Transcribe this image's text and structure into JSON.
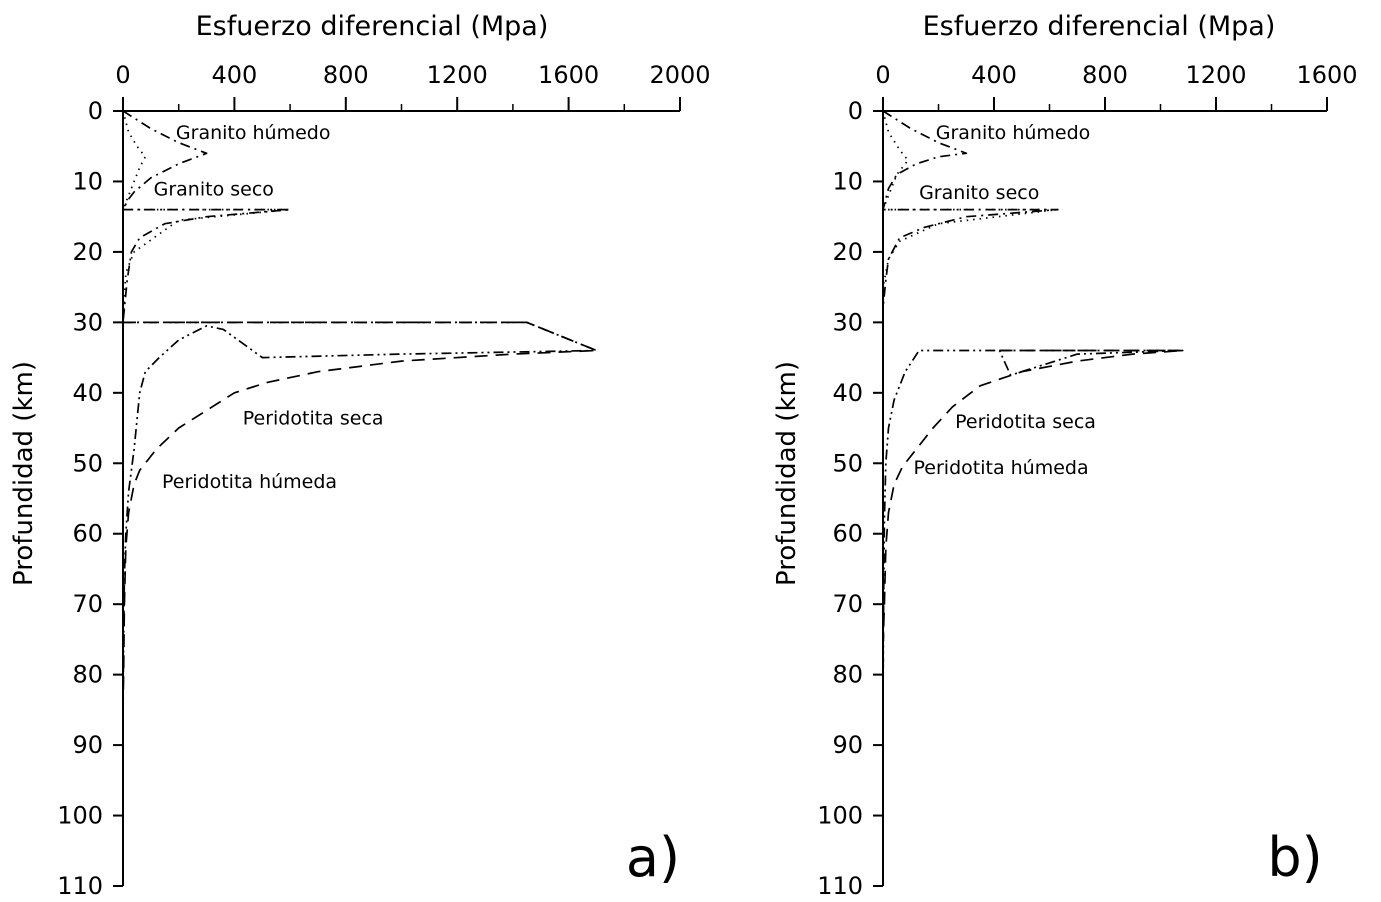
{
  "colors": {
    "ink": "#000000",
    "background": "#ffffff"
  },
  "chart_data": [
    {
      "type": "line",
      "panel_label": "a)",
      "title": "Esfuerzo diferencial (Mpa)",
      "xlabel": "Esfuerzo diferencial (Mpa)",
      "ylabel": "Profundidad (km)",
      "x_axis_position": "top",
      "y_inverted": true,
      "xlim": [
        0,
        2000
      ],
      "ylim": [
        0,
        110
      ],
      "xticks": [
        0,
        400,
        800,
        1200,
        1600,
        2000
      ],
      "xtick_labels": [
        "0",
        "400",
        "800",
        "1200",
        "1600",
        "2000"
      ],
      "yticks": [
        0,
        10,
        20,
        30,
        40,
        50,
        60,
        70,
        80,
        90,
        100,
        110
      ],
      "ytick_labels": [
        "0",
        "10",
        "20",
        "30",
        "40",
        "50",
        "60",
        "70",
        "80",
        "90",
        "100",
        "110"
      ],
      "grid": false,
      "series": [
        {
          "style": "dash-dot",
          "points": [
            [
              0,
              0
            ],
            [
              100,
              2.5
            ],
            [
              200,
              4.5
            ],
            [
              300,
              6
            ],
            [
              200,
              7.5
            ],
            [
              100,
              9.5
            ],
            [
              40,
              11.5
            ],
            [
              20,
              12.5
            ],
            [
              0,
              14
            ],
            [
              600,
              14
            ],
            [
              300,
              15
            ],
            [
              150,
              16
            ],
            [
              60,
              18
            ],
            [
              30,
              20
            ],
            [
              15,
              24
            ],
            [
              5,
              28
            ],
            [
              0,
              30
            ]
          ]
        },
        {
          "style": "dotted",
          "points": [
            [
              0,
              0
            ],
            [
              20,
              3
            ],
            [
              50,
              5
            ],
            [
              80,
              6.5
            ],
            [
              60,
              8
            ],
            [
              40,
              10
            ],
            [
              20,
              12
            ],
            [
              0,
              14
            ],
            [
              600,
              14
            ],
            [
              200,
              15.5
            ],
            [
              40,
              20
            ],
            [
              10,
              23
            ],
            [
              0,
              30
            ]
          ]
        },
        {
          "style": "dashed",
          "points": [
            [
              0,
              30
            ],
            [
              1450,
              30
            ],
            [
              1700,
              34
            ],
            [
              1400,
              34.5
            ],
            [
              1000,
              35.5
            ],
            [
              700,
              37
            ],
            [
              520,
              38.5
            ],
            [
              400,
              40
            ],
            [
              300,
              42.5
            ],
            [
              200,
              45
            ],
            [
              120,
              48
            ],
            [
              60,
              51
            ],
            [
              40,
              53
            ],
            [
              20,
              57
            ],
            [
              10,
              62
            ],
            [
              5,
              70
            ],
            [
              2,
              80
            ],
            [
              0,
              85
            ]
          ]
        },
        {
          "style": "dash-dot-dot",
          "points": [
            [
              0,
              30
            ],
            [
              1450,
              30
            ],
            [
              1700,
              34
            ],
            [
              1000,
              34.5
            ],
            [
              500,
              35
            ],
            [
              360,
              31
            ],
            [
              300,
              30.5
            ],
            [
              200,
              32.5
            ],
            [
              130,
              35
            ],
            [
              80,
              37
            ],
            [
              60,
              40
            ],
            [
              50,
              44
            ],
            [
              40,
              48
            ],
            [
              30,
              51
            ],
            [
              20,
              54
            ],
            [
              10,
              60
            ],
            [
              5,
              66
            ],
            [
              2,
              75
            ],
            [
              0,
              85
            ]
          ]
        }
      ],
      "annotations": [
        {
          "text": "Granito húmedo",
          "x": 190,
          "y": 3
        },
        {
          "text": "Granito seco",
          "x": 110,
          "y": 11
        },
        {
          "text": "Peridotita seca",
          "x": 430,
          "y": 43.5
        },
        {
          "text": "Peridotita húmeda",
          "x": 140,
          "y": 52.5
        }
      ]
    },
    {
      "type": "line",
      "panel_label": "b)",
      "title": "Esfuerzo diferencial (Mpa)",
      "xlabel": "Esfuerzo diferencial (Mpa)",
      "ylabel": "Profundidad (km)",
      "x_axis_position": "top",
      "y_inverted": true,
      "xlim": [
        0,
        1600
      ],
      "ylim": [
        0,
        110
      ],
      "xticks": [
        0,
        400,
        800,
        1200,
        1600
      ],
      "xtick_labels": [
        "0",
        "400",
        "800",
        "1200",
        "1600"
      ],
      "yticks": [
        0,
        10,
        20,
        30,
        40,
        50,
        60,
        70,
        80,
        90,
        100,
        110
      ],
      "ytick_labels": [
        "0",
        "10",
        "20",
        "30",
        "40",
        "50",
        "60",
        "70",
        "80",
        "90",
        "100",
        "110"
      ],
      "grid": false,
      "series": [
        {
          "style": "dash-dot",
          "points": [
            [
              0,
              0
            ],
            [
              100,
              2.5
            ],
            [
              200,
              4.5
            ],
            [
              300,
              6
            ],
            [
              200,
              6.5
            ],
            [
              120,
              7.5
            ],
            [
              50,
              9
            ],
            [
              20,
              11
            ],
            [
              0,
              14
            ],
            [
              630,
              14
            ],
            [
              300,
              15
            ],
            [
              150,
              16.5
            ],
            [
              60,
              18
            ],
            [
              20,
              21
            ],
            [
              10,
              24
            ],
            [
              0,
              28
            ]
          ]
        },
        {
          "style": "dotted",
          "points": [
            [
              0,
              0
            ],
            [
              20,
              3
            ],
            [
              60,
              5.5
            ],
            [
              90,
              7
            ],
            [
              50,
              9
            ],
            [
              20,
              12
            ],
            [
              0,
              14
            ],
            [
              630,
              14
            ],
            [
              200,
              16
            ],
            [
              60,
              18.5
            ],
            [
              20,
              21
            ],
            [
              0,
              25
            ]
          ]
        },
        {
          "style": "dashed",
          "points": [
            [
              420,
              34
            ],
            [
              1080,
              34
            ],
            [
              900,
              34.5
            ],
            [
              700,
              35.5
            ],
            [
              500,
              37
            ],
            [
              350,
              39
            ],
            [
              250,
              42
            ],
            [
              180,
              45
            ],
            [
              120,
              48
            ],
            [
              70,
              50.5
            ],
            [
              40,
              53
            ],
            [
              20,
              57
            ],
            [
              10,
              62
            ],
            [
              5,
              70
            ],
            [
              0,
              76
            ]
          ]
        },
        {
          "style": "dash-dot-dot",
          "points": [
            [
              420,
              34
            ],
            [
              1080,
              34
            ],
            [
              700,
              34.5
            ],
            [
              460,
              37.5
            ],
            [
              420,
              34
            ],
            [
              130,
              34
            ],
            [
              80,
              37
            ],
            [
              40,
              41
            ],
            [
              20,
              45
            ],
            [
              10,
              50
            ],
            [
              5,
              58
            ],
            [
              2,
              70
            ],
            [
              0,
              85
            ]
          ]
        },
        {
          "style": "solid",
          "points": [
            [
              0,
              50
            ],
            [
              0,
              98
            ]
          ]
        }
      ],
      "annotations": [
        {
          "text": "Granito húmedo",
          "x": 190,
          "y": 3
        },
        {
          "text": "Granito seco",
          "x": 130,
          "y": 11.5
        },
        {
          "text": "Peridotita seca",
          "x": 260,
          "y": 44
        },
        {
          "text": "Peridotita húmeda",
          "x": 110,
          "y": 50.5
        }
      ]
    }
  ]
}
